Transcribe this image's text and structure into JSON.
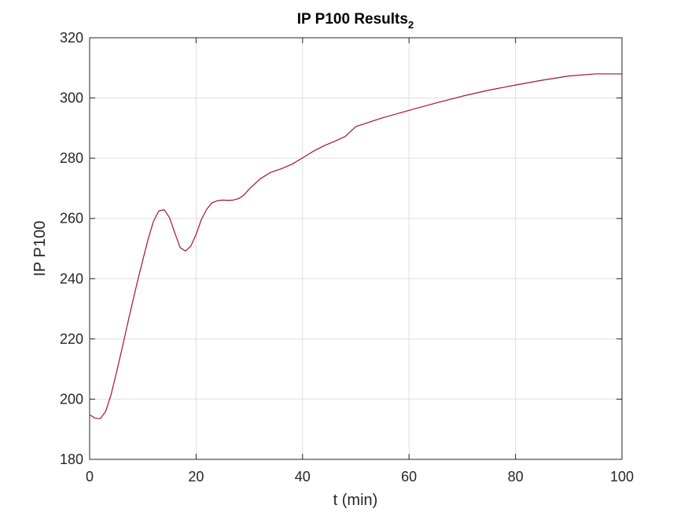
{
  "chart_data": {
    "type": "line",
    "title": "IP P100 Results",
    "title_subscript": "2",
    "xlabel": "t (min)",
    "ylabel": "IP P100",
    "xlim": [
      0,
      100
    ],
    "ylim": [
      180,
      320
    ],
    "xticks": [
      0,
      20,
      40,
      60,
      80,
      100
    ],
    "yticks": [
      180,
      200,
      220,
      240,
      260,
      280,
      300,
      320
    ],
    "grid": true,
    "series": [
      {
        "color": "#a2142f",
        "x": [
          0,
          1,
          2,
          3,
          4,
          5,
          6,
          7,
          8,
          9,
          10,
          11,
          12,
          13,
          14,
          15,
          16,
          17,
          18,
          19,
          20,
          21,
          22,
          23,
          24,
          25,
          26,
          27,
          28,
          29,
          30,
          32,
          34,
          36,
          38,
          40,
          42,
          44,
          46,
          48,
          50,
          55,
          60,
          65,
          70,
          75,
          80,
          85,
          90,
          95,
          100
        ],
        "y": [
          194.8,
          193.7,
          193.5,
          195.9,
          201.3,
          208.5,
          216.1,
          224.0,
          231.7,
          239.2,
          246.3,
          253.2,
          259.1,
          262.5,
          262.9,
          260.3,
          255.2,
          250.3,
          249.2,
          250.8,
          254.7,
          259.7,
          263.1,
          265.2,
          265.9,
          266.1,
          266.0,
          266.1,
          266.6,
          267.8,
          269.8,
          273.1,
          275.3,
          276.5,
          278.0,
          280.1,
          282.3,
          284.1,
          285.6,
          287.2,
          290.5,
          293.4,
          295.9,
          298.3,
          300.6,
          302.6,
          304.3,
          305.9,
          307.3,
          308.0,
          308.0
        ]
      }
    ]
  }
}
